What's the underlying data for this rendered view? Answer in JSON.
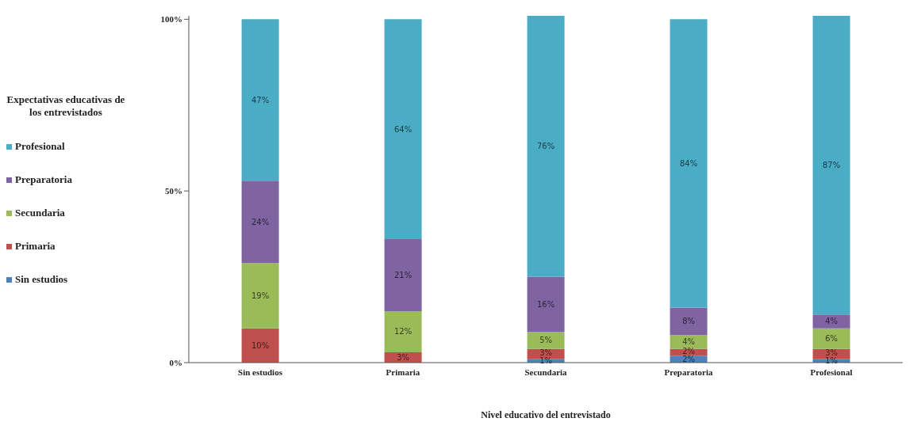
{
  "chart_data": {
    "type": "bar",
    "stacked": true,
    "xlabel": "Nivel educativo del entrevistado",
    "legend_title": "Expectativas educativas de los entrevistados",
    "legend": "left",
    "grid": false,
    "categories": [
      "Sin estudios",
      "Primaria",
      "Secundaria",
      "Preparatoria",
      "Profesional"
    ],
    "ylim": [
      0,
      101
    ],
    "yticks": [
      {
        "value": 0,
        "label": "0%"
      },
      {
        "value": 50,
        "label": "50%"
      },
      {
        "value": 100,
        "label": "100%"
      }
    ],
    "series": [
      {
        "name": "Sin estudios",
        "color": "#4f81bd",
        "values": [
          0,
          0,
          1,
          2,
          1
        ],
        "value_labels": [
          null,
          null,
          "1%",
          "2%",
          "1%"
        ]
      },
      {
        "name": "Primaria",
        "color": "#c0504d",
        "values": [
          10,
          3,
          3,
          2,
          3
        ],
        "value_labels": [
          "10%",
          "3%",
          "3%",
          "2%",
          "3%"
        ]
      },
      {
        "name": "Secundaria",
        "color": "#9bbb59",
        "values": [
          19,
          12,
          5,
          4,
          6
        ],
        "value_labels": [
          "19%",
          "12%",
          "5%",
          "4%",
          "6%"
        ]
      },
      {
        "name": "Preparatoria",
        "color": "#8064a2",
        "values": [
          24,
          21,
          16,
          8,
          4
        ],
        "value_labels": [
          "24%",
          "21%",
          "16%",
          "8%",
          "4%"
        ]
      },
      {
        "name": "Profesional",
        "color": "#4bacc6",
        "values": [
          47,
          64,
          76,
          84,
          87
        ],
        "value_labels": [
          "47%",
          "64%",
          "76%",
          "84%",
          "87%"
        ]
      }
    ]
  }
}
